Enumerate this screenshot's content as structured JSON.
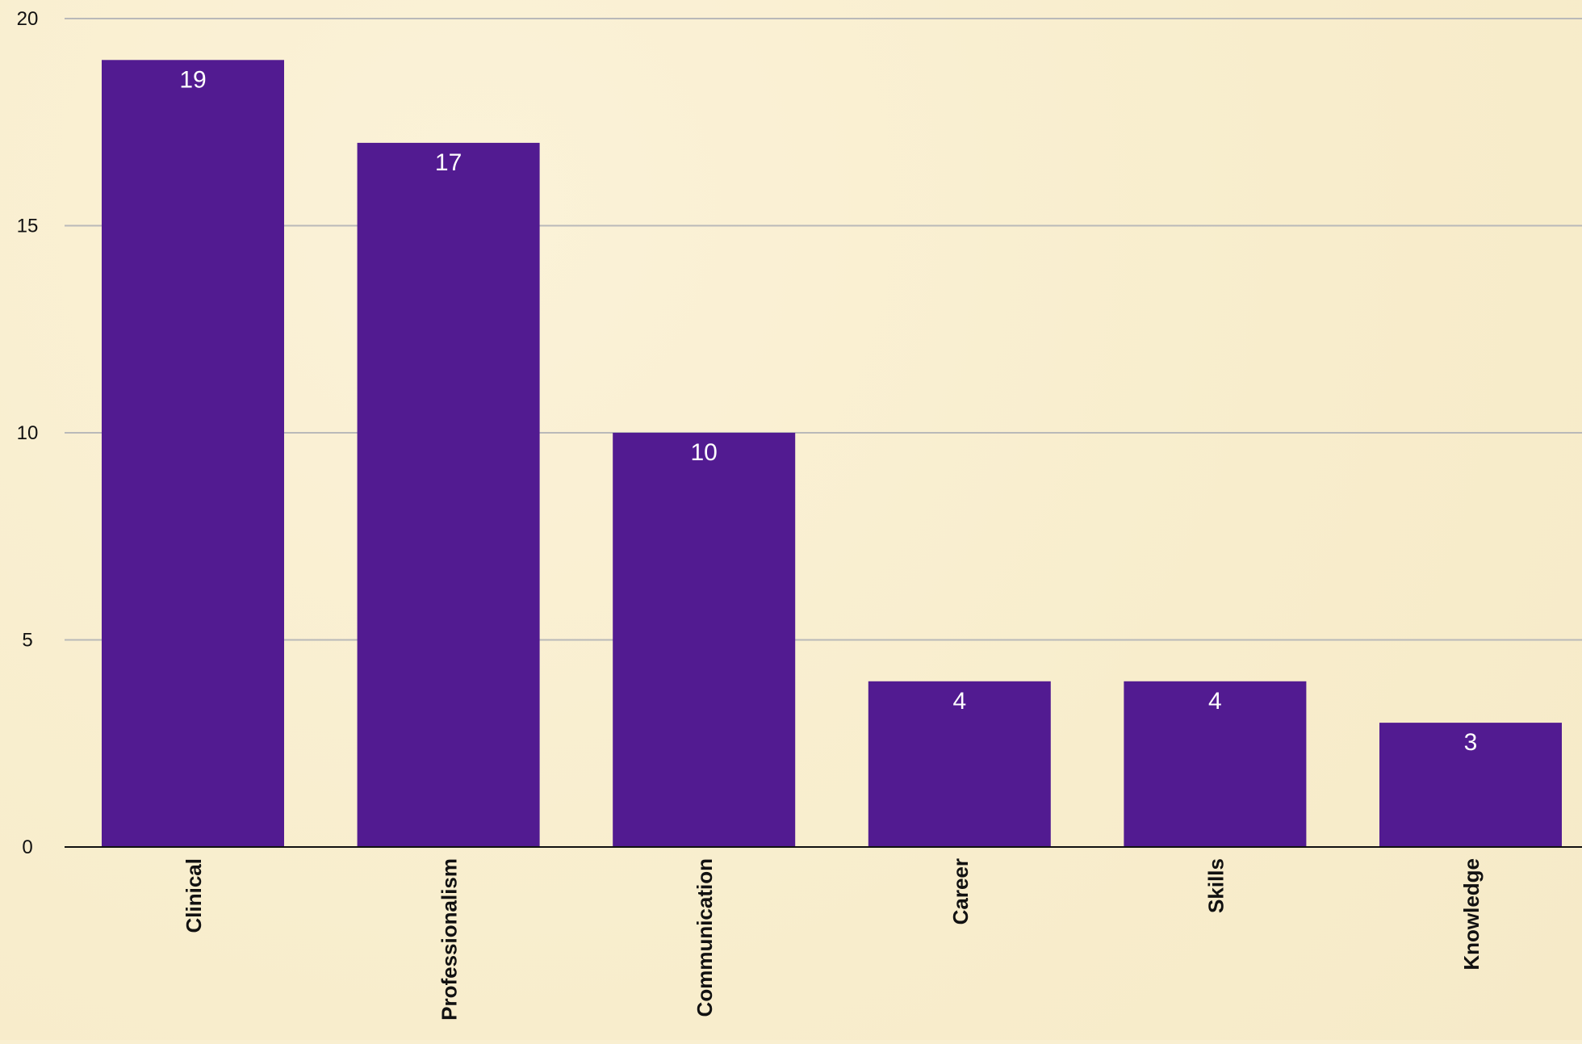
{
  "chart_data": {
    "type": "bar",
    "title": "",
    "xlabel": "",
    "ylabel": "",
    "categories": [
      "Clinical",
      "Professionalism",
      "Communication",
      "Career",
      "Skills",
      "Knowledge"
    ],
    "values": [
      19,
      17,
      10,
      4,
      4,
      3
    ],
    "ylim": [
      0,
      20
    ],
    "yticks": [
      0,
      5,
      10,
      15,
      20
    ],
    "grid": true,
    "legend": "none",
    "colors": {
      "bar": "#521b91",
      "background": "#f9efd1",
      "grid": "#b9b9b9",
      "axis": "#111111",
      "data_label": "#ffffff"
    }
  }
}
